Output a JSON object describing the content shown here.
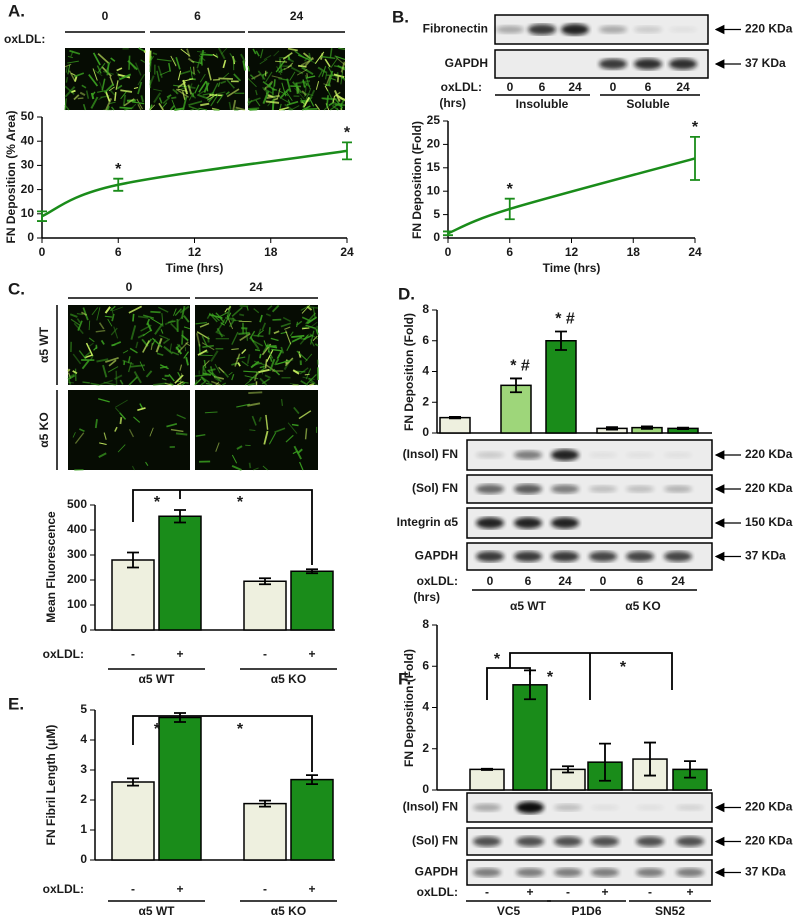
{
  "chart_data": [
    {
      "type": "line",
      "ylabel": "FN Deposition (% Area)",
      "xlabel": "Time (hrs)",
      "x": [
        0,
        6,
        24
      ],
      "values": [
        9,
        22,
        36
      ],
      "errors": [
        2,
        2.5,
        3.5
      ],
      "color": "#1a8c1a",
      "xlim": [
        0,
        24
      ],
      "ylim": [
        0,
        50
      ],
      "xticks": [
        0,
        6,
        12,
        18,
        24
      ],
      "yticks": [
        0,
        10,
        20,
        30,
        40,
        50
      ],
      "annotations": [
        "*",
        "*"
      ]
    },
    {
      "type": "line",
      "ylabel": "FN Deposition (Fold)",
      "xlabel": "Time (hrs)",
      "x": [
        0,
        6,
        24
      ],
      "values": [
        1,
        6.2,
        17
      ],
      "errors": [
        0.4,
        2.2,
        4.6
      ],
      "color": "#1a8c1a",
      "xlim": [
        0,
        24
      ],
      "ylim": [
        0,
        25
      ],
      "xticks": [
        0,
        6,
        12,
        18,
        24
      ],
      "yticks": [
        0,
        5,
        10,
        15,
        20,
        25
      ],
      "annotations": [
        "*",
        "*"
      ]
    },
    {
      "type": "bar",
      "ylabel": "Mean Fluorescence",
      "treatment_label": "oxLDL:",
      "categories": [
        "α5 WT",
        "α5 KO"
      ],
      "series": [
        {
          "name": "-",
          "color": "#eef0df",
          "values": [
            280,
            195
          ],
          "errors": [
            30,
            12
          ]
        },
        {
          "name": "+",
          "color": "#1a8c1a",
          "values": [
            455,
            235
          ],
          "errors": [
            25,
            8
          ]
        }
      ],
      "ylim": [
        0,
        500
      ],
      "yticks": [
        0,
        100,
        200,
        300,
        400,
        500
      ],
      "annotations": [
        "*",
        "*"
      ]
    },
    {
      "type": "bar",
      "ylabel": "FN Deposition (Fold)",
      "categories": [
        "0",
        "6",
        "24",
        "0",
        "6",
        "24"
      ],
      "values": [
        1,
        3.1,
        6,
        0.3,
        0.35,
        0.3
      ],
      "errors": [
        0.05,
        0.45,
        0.6,
        0.08,
        0.08,
        0.05
      ],
      "colors": [
        "#eef0df",
        "#9ed67a",
        "#1a8c1a",
        "#eef0df",
        "#9ed67a",
        "#1a8c1a"
      ],
      "ylim": [
        0,
        8
      ],
      "yticks": [
        0,
        2,
        4,
        6,
        8
      ],
      "annotations": [
        "* #",
        "* #"
      ]
    },
    {
      "type": "bar",
      "ylabel": "FN Fibril Length (μM)",
      "treatment_label": "oxLDL:",
      "categories": [
        "α5 WT",
        "α5 KO"
      ],
      "series": [
        {
          "name": "-",
          "color": "#eef0df",
          "values": [
            2.6,
            1.88
          ],
          "errors": [
            0.12,
            0.1
          ]
        },
        {
          "name": "+",
          "color": "#1a8c1a",
          "values": [
            4.75,
            2.68
          ],
          "errors": [
            0.15,
            0.15
          ]
        }
      ],
      "ylim": [
        0,
        5
      ],
      "yticks": [
        0,
        1,
        2,
        3,
        4,
        5
      ],
      "annotations": [
        "*",
        "*"
      ]
    },
    {
      "type": "bar",
      "ylabel": "FN Deposition (Fold)",
      "treatment_label": "oxLDL:",
      "categories": [
        "VC5",
        "P1D6",
        "SN52"
      ],
      "series": [
        {
          "name": "-",
          "color": "#eef0df",
          "values": [
            1,
            1,
            1.5
          ],
          "errors": [
            0.03,
            0.15,
            0.8
          ]
        },
        {
          "name": "+",
          "color": "#1a8c1a",
          "values": [
            5.1,
            1.35,
            1.0
          ],
          "errors": [
            0.7,
            0.9,
            0.4
          ]
        }
      ],
      "ylim": [
        0,
        8
      ],
      "yticks": [
        0,
        2,
        4,
        6,
        8
      ],
      "annotations": [
        "*",
        "*",
        "*"
      ]
    }
  ],
  "panel_a": {
    "label": "A.",
    "treatment_label": "oxLDL:",
    "times": [
      "0",
      "6",
      "24"
    ]
  },
  "panel_b": {
    "label": "B.",
    "rows": [
      "Fibronectin",
      "GAPDH"
    ],
    "markers": [
      "220 KDa",
      "37 KDa"
    ],
    "treatment_label": "oxLDL:",
    "unit_label": "(hrs)",
    "lanes": [
      "0",
      "6",
      "24",
      "0",
      "6",
      "24"
    ],
    "groups": [
      "Insoluble",
      "Soluble"
    ]
  },
  "panel_c": {
    "label": "C.",
    "times": [
      "0",
      "24"
    ],
    "rows": [
      "α5 WT",
      "α5 KO"
    ]
  },
  "panel_d": {
    "label": "D.",
    "rows": [
      "(Insol) FN",
      "(Sol) FN",
      "Integrin α5",
      "GAPDH"
    ],
    "markers": [
      "220 KDa",
      "220 KDa",
      "150 KDa",
      "37 KDa"
    ],
    "treatment_label": "oxLDL:",
    "unit_label": "(hrs)",
    "groups": [
      "α5 WT",
      "α5 KO"
    ]
  },
  "panel_e": {
    "label": "E."
  },
  "panel_f": {
    "label": "F.",
    "rows": [
      "(Insol) FN",
      "(Sol) FN",
      "GAPDH"
    ],
    "markers": [
      "220 KDa",
      "220 KDa",
      "37 KDa"
    ]
  }
}
